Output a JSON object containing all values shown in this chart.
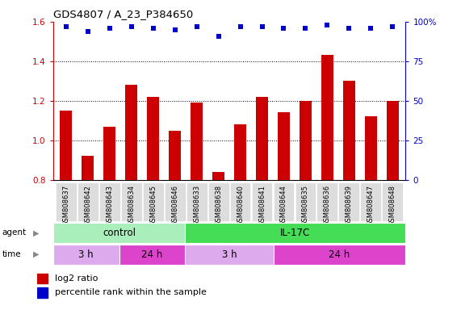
{
  "title": "GDS4807 / A_23_P384650",
  "samples": [
    "GSM808637",
    "GSM808642",
    "GSM808643",
    "GSM808634",
    "GSM808645",
    "GSM808646",
    "GSM808633",
    "GSM808638",
    "GSM808640",
    "GSM808641",
    "GSM808644",
    "GSM808635",
    "GSM808636",
    "GSM808639",
    "GSM808647",
    "GSM808648"
  ],
  "log2_ratio": [
    1.15,
    0.92,
    1.07,
    1.28,
    1.22,
    1.05,
    1.19,
    0.84,
    1.08,
    1.22,
    1.14,
    1.2,
    1.43,
    1.3,
    1.12,
    1.2
  ],
  "percentile": [
    97,
    94,
    96,
    97,
    96,
    95,
    97,
    91,
    97,
    97,
    96,
    96,
    98,
    96,
    96,
    97
  ],
  "ylim_left": [
    0.8,
    1.6
  ],
  "ylim_right": [
    0,
    100
  ],
  "bar_color": "#cc0000",
  "dot_color": "#0000cc",
  "agent_groups": [
    {
      "label": "control",
      "start": 0,
      "end": 6,
      "color": "#aaeebb"
    },
    {
      "label": "IL-17C",
      "start": 6,
      "end": 16,
      "color": "#44dd55"
    }
  ],
  "time_groups": [
    {
      "label": "3 h",
      "start": 0,
      "end": 3,
      "color": "#ddaaee"
    },
    {
      "label": "24 h",
      "start": 3,
      "end": 6,
      "color": "#dd44cc"
    },
    {
      "label": "3 h",
      "start": 6,
      "end": 10,
      "color": "#ddaaee"
    },
    {
      "label": "24 h",
      "start": 10,
      "end": 16,
      "color": "#dd44cc"
    }
  ],
  "legend_items": [
    {
      "label": "log2 ratio",
      "color": "#cc0000"
    },
    {
      "label": "percentile rank within the sample",
      "color": "#0000cc"
    }
  ]
}
